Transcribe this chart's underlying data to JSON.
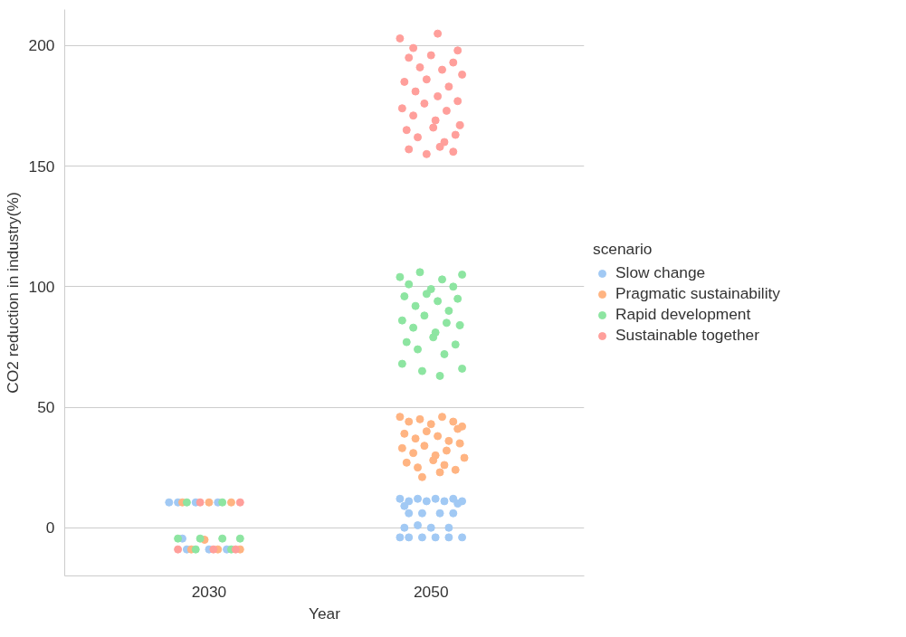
{
  "chart_data": {
    "type": "scatter",
    "xlabel": "Year",
    "ylabel": "CO2 reduction in industry(%)",
    "legend_title": "scenario",
    "legend": "right",
    "grid": "y",
    "marker": "circle",
    "xlim": [
      2017,
      2063.8
    ],
    "xticks": [
      2030,
      2050
    ],
    "ylim": [
      -20,
      215
    ],
    "yticks": [
      0,
      50,
      100,
      150,
      200
    ],
    "series": [
      {
        "name": "Slow change",
        "color": "#a1c9f4",
        "x": [
          2027.2,
          2028.8,
          2030.8,
          2026.4,
          2028,
          2030,
          2031.6,
          2027.6,
          2047.2,
          2048,
          2048.8,
          2049.6,
          2050.4,
          2051.2,
          2052,
          2052.8,
          2047.6,
          2052.4,
          2048,
          2049.2,
          2050.8,
          2052,
          2047.6,
          2048.8,
          2050,
          2051.6,
          2047.2,
          2048,
          2049.2,
          2050.4,
          2051.6,
          2052.8
        ],
        "values": [
          10.5,
          10.5,
          10.5,
          10.5,
          -9,
          -9,
          -9,
          -4.5,
          12,
          11,
          12,
          11,
          12,
          11,
          12,
          11,
          9,
          10,
          6,
          6,
          6,
          6,
          0,
          1,
          0,
          0,
          -4,
          -4,
          -4,
          -4,
          -4,
          -4
        ]
      },
      {
        "name": "Pragmatic sustainability",
        "color": "#ffb482",
        "x": [
          2027.6,
          2030,
          2032,
          2028.4,
          2030.8,
          2032.8,
          2029.6,
          2047.2,
          2048,
          2049,
          2050,
          2051,
          2052,
          2052.8,
          2047.6,
          2048.6,
          2049.6,
          2050.6,
          2051.6,
          2052.4,
          2047.4,
          2048.4,
          2049.4,
          2050.4,
          2051.4,
          2052.6,
          2047.8,
          2048.8,
          2050.2,
          2051.2,
          2052.2,
          2049.2,
          2050.8,
          2053
        ],
        "values": [
          10.5,
          10.5,
          10.5,
          -9,
          -9,
          -9,
          -5,
          46,
          44,
          45,
          43,
          46,
          44,
          42,
          39,
          37,
          40,
          38,
          36,
          41,
          33,
          31,
          34,
          30,
          32,
          35,
          27,
          25,
          28,
          26,
          24,
          21,
          23,
          29
        ]
      },
      {
        "name": "Rapid development",
        "color": "#8de5a1",
        "x": [
          2028,
          2031.2,
          2027.2,
          2029.2,
          2031.2,
          2032.8,
          2028.8,
          2032,
          2047.2,
          2048,
          2049,
          2050,
          2051,
          2052,
          2052.8,
          2047.6,
          2048.6,
          2049.6,
          2050.6,
          2051.6,
          2052.4,
          2047.4,
          2048.4,
          2049.4,
          2050.4,
          2051.4,
          2052.6,
          2047.8,
          2048.8,
          2050.2,
          2051.2,
          2052.2,
          2047.4,
          2049.2,
          2050.8,
          2052.8
        ],
        "values": [
          10.5,
          10.5,
          -4.5,
          -4.5,
          -4.5,
          -4.5,
          -9,
          -9,
          104,
          101,
          106,
          99,
          103,
          100,
          105,
          96,
          92,
          97,
          94,
          90,
          95,
          86,
          83,
          88,
          81,
          85,
          84,
          77,
          74,
          79,
          72,
          76,
          68,
          65,
          63,
          66
        ]
      },
      {
        "name": "Sustainable together",
        "color": "#ff9f9b",
        "x": [
          2029.2,
          2032.8,
          2027.2,
          2030.4,
          2032.4,
          2047.2,
          2048.4,
          2050.6,
          2052.4,
          2048,
          2049,
          2050,
          2051,
          2052,
          2052.8,
          2047.6,
          2048.6,
          2049.6,
          2050.6,
          2051.6,
          2052.4,
          2047.4,
          2048.4,
          2049.4,
          2050.4,
          2051.4,
          2052.6,
          2047.8,
          2048.8,
          2050.2,
          2051.2,
          2052.2,
          2048,
          2049.6,
          2050.8,
          2052
        ],
        "values": [
          10.5,
          10.5,
          -9,
          -9,
          -9,
          203,
          199,
          205,
          198,
          195,
          191,
          196,
          190,
          193,
          188,
          185,
          181,
          186,
          179,
          183,
          177,
          174,
          171,
          176,
          169,
          173,
          167,
          165,
          162,
          166,
          160,
          163,
          157,
          155,
          158,
          156
        ]
      }
    ]
  }
}
